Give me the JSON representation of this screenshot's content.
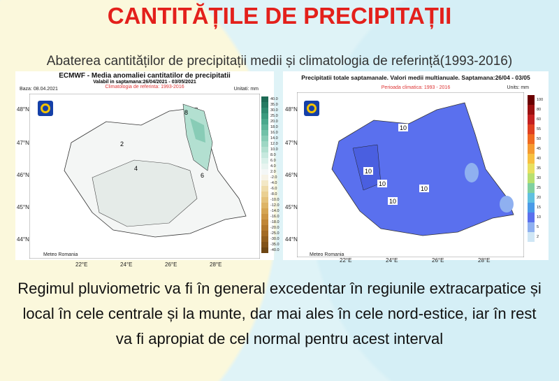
{
  "title": "CANTITĂȚILE DE PRECIPITAȚII",
  "subtitle": "Abaterea cantităților de precipitații medii și climatologia de referință(1993-2016)",
  "map_left": {
    "title": "ECMWF  - Media anomaliei cantitatilor de precipitatii",
    "validity": "Valabil in saptamana:26/04/2021 - 03/05/2021",
    "climatology": "Climatologia de referinta: 1993-2016",
    "base": "Baza: 08.04.2021",
    "units": "Unitati: mm",
    "logo": "METEO ROMANIA",
    "footer": "Meteo Romania",
    "legend": [
      "40.0",
      "35.0",
      "30.0",
      "25.0",
      "20.0",
      "18.0",
      "16.0",
      "14.0",
      "12.0",
      "10.0",
      "8.0",
      "6.0",
      "4.0",
      "2.0",
      "-2.0",
      "-4.0",
      "-6.0",
      "-8.0",
      "-10.0",
      "-12.0",
      "-14.0",
      "-16.0",
      "-18.0",
      "-20.0",
      "-25.0",
      "-30.0",
      "-35.0",
      "-40.0"
    ],
    "legend_colors": [
      "#1d6b55",
      "#257a62",
      "#2f8a70",
      "#3a9a7e",
      "#4aa88c",
      "#5db59a",
      "#72c1a8",
      "#88ccb6",
      "#9ed7c4",
      "#b3e0d1",
      "#c7e9de",
      "#d9f0e9",
      "#e8f4f0",
      "#f4f7f6",
      "#f7f3e6",
      "#f3e8c6",
      "#efdcaa",
      "#ead092",
      "#e4c27b",
      "#ddb466",
      "#d5a553",
      "#cc9644",
      "#c08637",
      "#b2782d",
      "#a36b25",
      "#935f1f",
      "#82531a",
      "#6e4614"
    ],
    "contours": [
      "2",
      "4",
      "6",
      "8"
    ],
    "lat": [
      "48°N",
      "47°N",
      "46°N",
      "45°N",
      "44°N"
    ],
    "lon": [
      "22°E",
      "24°E",
      "26°E",
      "28°E"
    ]
  },
  "map_right": {
    "title": "Precipitatii totale saptamanale. Valori medii multianuale. Saptamana:26/04 - 03/05",
    "period": "Perioada climatica: 1993 - 2016",
    "units": "Units: mm",
    "logo": "METEO ROMANIA",
    "footer": "Meteo Romania",
    "legend": [
      "100",
      "80",
      "60",
      "55",
      "50",
      "45",
      "40",
      "35",
      "30",
      "25",
      "20",
      "15",
      "10",
      "5",
      "2"
    ],
    "legend_colors": [
      "#6b0000",
      "#9b1010",
      "#c42020",
      "#e04020",
      "#f06a20",
      "#f59a30",
      "#f7c040",
      "#e8e060",
      "#b8e070",
      "#80d0a0",
      "#60c0e0",
      "#4a9ae8",
      "#5a70ee",
      "#8fb0f0",
      "#cfe6f5"
    ],
    "contours": [
      "10",
      "10",
      "10",
      "10",
      "10"
    ],
    "lat": [
      "48°N",
      "47°N",
      "46°N",
      "45°N",
      "44°N"
    ],
    "lon": [
      "22°E",
      "24°E",
      "26°E",
      "28°E"
    ]
  },
  "body_text": "Regimul pluviometric va fi în general excedentar în regiunile extracarpatice și local în cele centrale și la munte, dar mai ales în cele nord-estice, iar în rest va fi apropiat de cel normal pentru acest interval"
}
